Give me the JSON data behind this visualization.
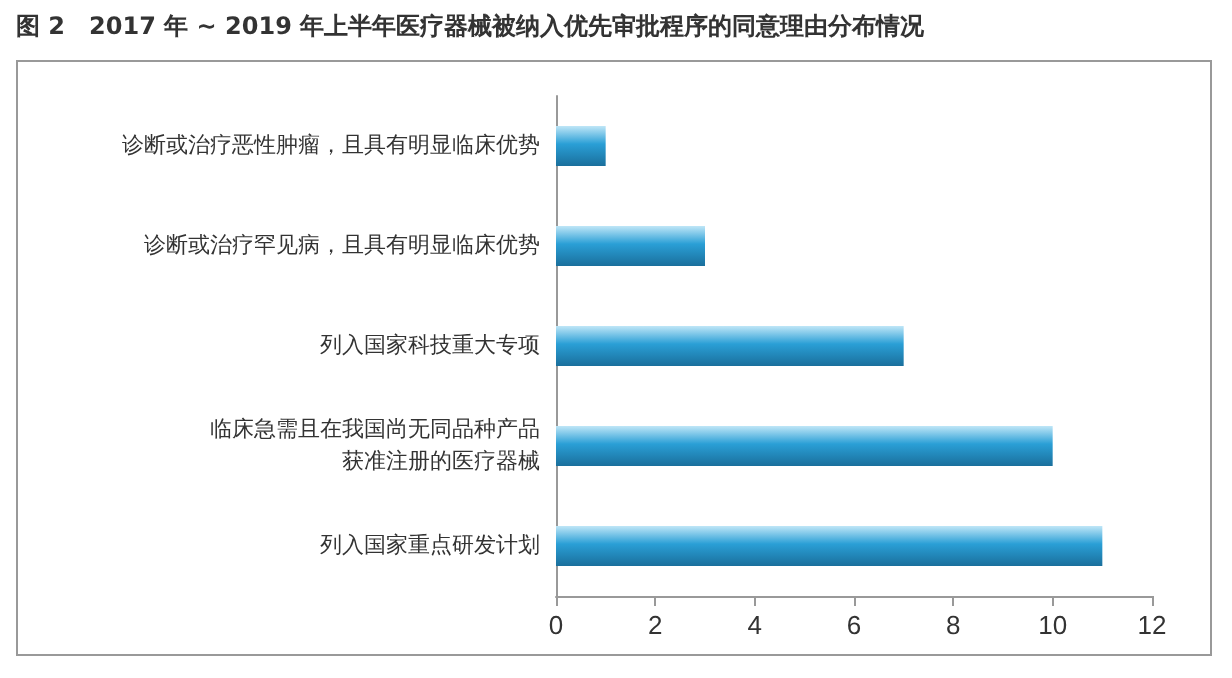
{
  "chart_data": {
    "type": "bar",
    "orientation": "horizontal",
    "title": "图 2　2017 年 ~ 2019 年上半年医疗器械被纳入优先审批程序的同意理由分布情况",
    "categories": [
      "诊断或治疗恶性肿瘤，且具有明显临床优势",
      "诊断或治疗罕见病，且具有明显临床优势",
      "列入国家科技重大专项",
      "临床急需且在我国尚无同品种产品获准注册的医疗器械",
      "列入国家重点研发计划"
    ],
    "values": [
      1,
      3,
      7,
      10,
      11
    ],
    "color": "#2a9fd6",
    "xlim": [
      0,
      12
    ],
    "xticks": [
      0,
      2,
      4,
      6,
      8,
      10,
      12
    ],
    "grid": false
  }
}
